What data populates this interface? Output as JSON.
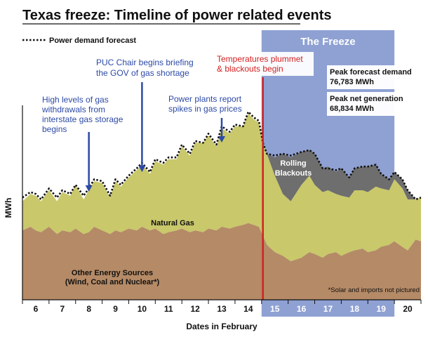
{
  "chart_data": {
    "type": "area",
    "title": "Texas freeze: Timeline of power related events",
    "xlabel": "Dates in February",
    "ylabel": "MWh",
    "categories": [
      "6",
      "7",
      "8",
      "9",
      "10",
      "11",
      "12",
      "13",
      "14",
      "15",
      "16",
      "17",
      "18",
      "19",
      "20"
    ],
    "freeze_days": [
      "15",
      "16",
      "17",
      "18",
      "19"
    ],
    "freeze_label": "The Freeze",
    "legend": {
      "label": "Power demand forecast",
      "placement": "top-left",
      "style": "dotted"
    },
    "x_range": [
      5.5,
      20.5
    ],
    "ylim": [
      0,
      100
    ],
    "grid": false,
    "x": [
      5.5,
      5.8,
      6.0,
      6.2,
      6.5,
      6.8,
      7.0,
      7.3,
      7.5,
      7.8,
      8.0,
      8.2,
      8.5,
      8.8,
      9.0,
      9.2,
      9.5,
      9.8,
      10.0,
      10.3,
      10.5,
      10.8,
      11.0,
      11.3,
      11.5,
      11.8,
      12.0,
      12.3,
      12.5,
      12.8,
      13.0,
      13.3,
      13.5,
      13.8,
      14.0,
      14.2,
      14.4,
      14.55,
      14.7,
      15.0,
      15.3,
      15.6,
      16.0,
      16.3,
      16.5,
      16.8,
      17.0,
      17.3,
      17.5,
      17.8,
      18.0,
      18.3,
      18.5,
      18.8,
      19.0,
      19.3,
      19.5,
      19.8,
      20.0,
      20.3,
      20.5
    ],
    "series": [
      {
        "name": "Other Energy Sources (Wind, Coal and Nuclear*)",
        "values": [
          38,
          40,
          38,
          37,
          40,
          36,
          38,
          37,
          39,
          36,
          37,
          40,
          38,
          36,
          38,
          37,
          39,
          38,
          40,
          38,
          39,
          36,
          37,
          38,
          39,
          37,
          38,
          37,
          39,
          38,
          40,
          39,
          40,
          41,
          42,
          41,
          40,
          35,
          30,
          26,
          24,
          21,
          23,
          26,
          25,
          23,
          25,
          26,
          24,
          26,
          27,
          28,
          26,
          27,
          29,
          30,
          32,
          29,
          27,
          33,
          32
        ]
      },
      {
        "name": "Natural Gas",
        "values": [
          16,
          18,
          19,
          17,
          20,
          18,
          21,
          20,
          24,
          19,
          23,
          25,
          26,
          20,
          27,
          25,
          28,
          33,
          34,
          31,
          37,
          38,
          40,
          39,
          45,
          42,
          48,
          49,
          51,
          46,
          54,
          52,
          55,
          54,
          60,
          58,
          57,
          51,
          50,
          42,
          34,
          33,
          40,
          42,
          38,
          36,
          35,
          32,
          33,
          30,
          33,
          32,
          33,
          35,
          32,
          30,
          34,
          32,
          28,
          22,
          24
        ]
      },
      {
        "name": "Rolling Blackouts",
        "values": [
          0,
          0,
          0,
          0,
          0,
          0,
          0,
          0,
          0,
          0,
          0,
          0,
          0,
          0,
          0,
          0,
          0,
          0,
          0,
          0,
          0,
          0,
          0,
          0,
          0,
          0,
          0,
          0,
          0,
          0,
          0,
          0,
          0,
          0,
          0,
          0,
          0,
          0,
          0,
          10,
          22,
          24,
          18,
          14,
          17,
          13,
          13,
          12,
          15,
          11,
          12,
          13,
          14,
          12,
          8,
          6,
          4,
          5,
          5,
          0,
          0
        ]
      },
      {
        "name": "Power demand forecast",
        "values": [
          56,
          59,
          58,
          55,
          61,
          56,
          60,
          58,
          63,
          57,
          61,
          66,
          65,
          57,
          66,
          63,
          68,
          72,
          75,
          70,
          77,
          75,
          78,
          78,
          85,
          80,
          87,
          86,
          91,
          85,
          95,
          92,
          96,
          95,
          103,
          100,
          98,
          86,
          80,
          79,
          80,
          79,
          81,
          82,
          80,
          72,
          72,
          71,
          72,
          67,
          72,
          73,
          73,
          74,
          69,
          66,
          70,
          66,
          60,
          55,
          56
        ]
      }
    ],
    "annotations": [
      {
        "text": [
          "High levels of gas",
          "withdrawals from",
          "interstate gas storage",
          "begins"
        ],
        "x": 8.0,
        "kind": "arrow"
      },
      {
        "text": [
          "PUC Chair begins briefing",
          "the GOV of gas shortage"
        ],
        "x": 10.0,
        "kind": "arrow"
      },
      {
        "text": [
          "Power plants report",
          "spikes in gas prices"
        ],
        "x": 13.0,
        "kind": "arrow"
      },
      {
        "text": [
          "Temperatures plummet",
          "& blackouts begin"
        ],
        "x": 14.55,
        "kind": "line"
      }
    ],
    "callouts": [
      {
        "label": "Peak forecast demand",
        "value": "76,783 MWh"
      },
      {
        "label": "Peak net generation",
        "value": "68,834 MWh"
      }
    ],
    "region_labels": {
      "other": [
        "Other Energy Sources",
        "(Wind, Coal and Nuclear*)"
      ],
      "gas": "Natural Gas",
      "blackouts": [
        "Rolling",
        "Blackouts"
      ]
    },
    "footnote": "*Solar and imports not pictured",
    "colors": {
      "other": "#b58a66",
      "gas": "#c9c86b",
      "blackouts": "#6e6e6e",
      "freeze": "#8fa1d3",
      "freeze_axis": "#8fa1d3",
      "annotation": "#2c4aa6",
      "event_line": "#d42020"
    }
  }
}
